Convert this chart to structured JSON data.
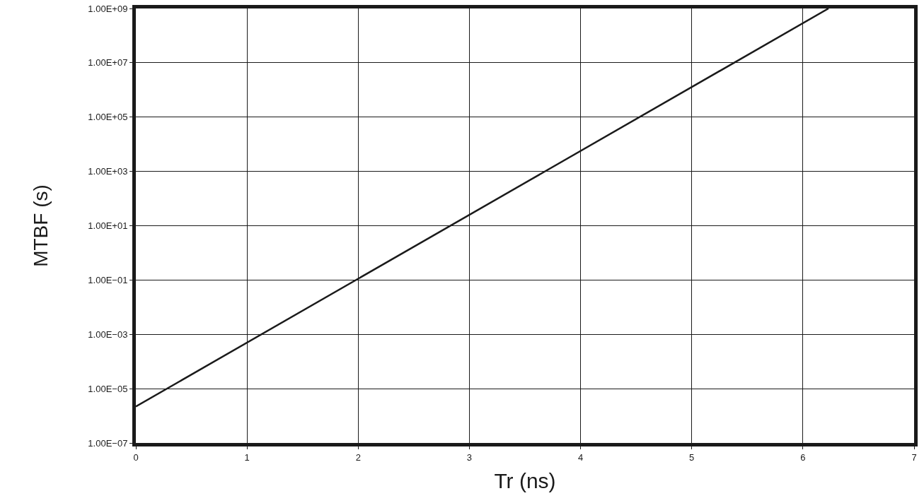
{
  "chart_data": {
    "type": "line",
    "xlabel": "Tr (ns)",
    "ylabel": "MTBF (s)",
    "x": [
      0,
      6.23
    ],
    "series": [
      {
        "color": "#1a1a1a",
        "values": [
          2.2e-06,
          1000000000.0
        ]
      }
    ],
    "xlim": [
      0,
      7
    ],
    "xticks": [
      0,
      1,
      2,
      3,
      4,
      5,
      6,
      7
    ],
    "ylim": [
      1e-07,
      1000000000.0
    ],
    "yticks": [
      {
        "value": 1e-07,
        "label": "1.00E−07"
      },
      {
        "value": 1e-05,
        "label": "1.00E−05"
      },
      {
        "value": 0.001,
        "label": "1.00E−03"
      },
      {
        "value": 0.1,
        "label": "1.00E−01"
      },
      {
        "value": 10,
        "label": "1.00E+01"
      },
      {
        "value": 1000,
        "label": "1.00E+03"
      },
      {
        "value": 100000.0,
        "label": "1.00E+05"
      },
      {
        "value": 10000000.0,
        "label": "1.00E+07"
      },
      {
        "value": 1000000000.0,
        "label": "1.00E+09"
      }
    ],
    "log": true,
    "grid": true,
    "marker": "none",
    "line_style": "solid"
  }
}
